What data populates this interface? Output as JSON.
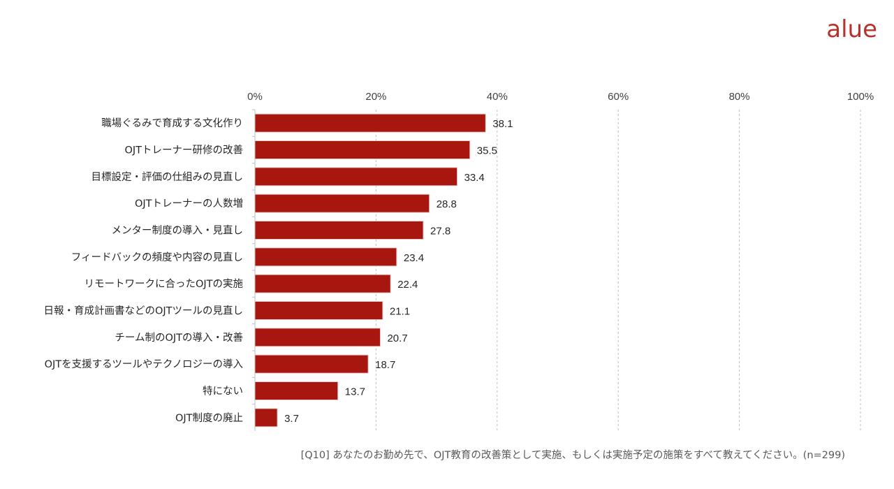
{
  "brand": {
    "logo_text": "alue",
    "color": "#b8312b"
  },
  "question_note": "[Q10] あなたのお勤め先で、OJT教育の改善策として実施、もしくは実施予定の施策をすべて教えてください。(n=299)",
  "chart_data": {
    "type": "bar",
    "orientation": "horizontal",
    "title": "",
    "xlabel": "",
    "ylabel": "",
    "xlim": [
      0,
      100
    ],
    "ticks": [
      "0%",
      "20%",
      "40%",
      "60%",
      "80%",
      "100%"
    ],
    "tick_values": [
      0,
      20,
      40,
      60,
      80,
      100
    ],
    "axis_position": "top",
    "grid": "vertical-dashed",
    "bar_color": "#a8170f",
    "categories": [
      "職場ぐるみで育成する文化作り",
      "OJTトレーナー研修の改善",
      "目標設定・評価の仕組みの見直し",
      "OJTトレーナーの人数増",
      "メンター制度の導入・見直し",
      "フィードバックの頻度や内容の見直し",
      "リモートワークに合ったOJTの実施",
      "日報・育成計画書などのOJTツールの見直し",
      "チーム制のOJTの導入・改善",
      "OJTを支援するツールやテクノロジーの導入",
      "特にない",
      "OJT制度の廃止"
    ],
    "values": [
      38.1,
      35.5,
      33.4,
      28.8,
      27.8,
      23.4,
      22.4,
      21.1,
      20.7,
      18.7,
      13.7,
      3.7
    ],
    "data_labels": [
      "38.1",
      "35.5",
      "33.4",
      "28.8",
      "27.8",
      "23.4",
      "22.4",
      "21.1",
      "20.7",
      "18.7",
      "13.7",
      "3.7"
    ]
  }
}
